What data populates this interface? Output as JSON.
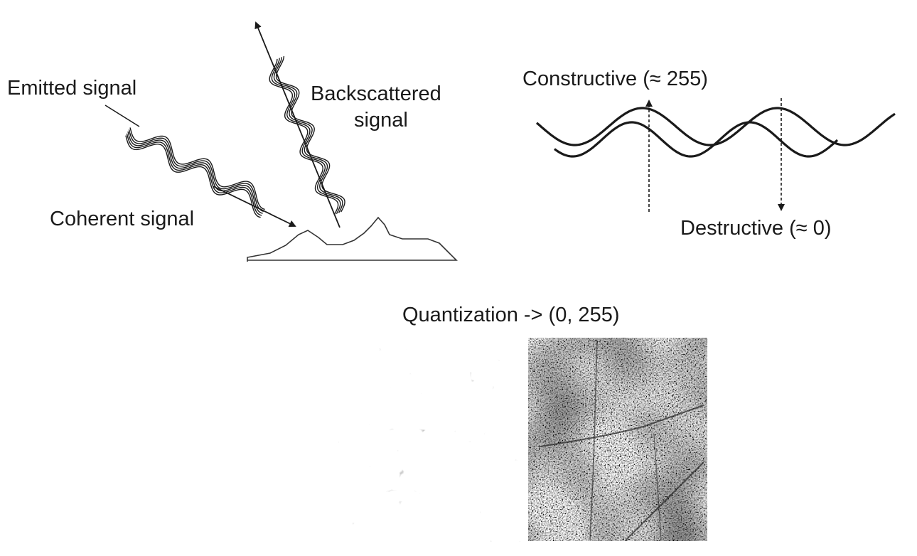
{
  "labels": {
    "emitted": "Emitted signal",
    "coherent": "Coherent signal",
    "backscattered_1": "Backscattered",
    "backscattered_2": "signal",
    "constructive": "Constructive (≈ 255)",
    "destructive": "Destructive (≈ 0)",
    "quantization": "Quantization -> (0, 255)"
  },
  "colors": {
    "ink": "#1a1a1a",
    "background": "#ffffff"
  },
  "panels": [
    "speckle-low-res",
    "speckle-high-res"
  ]
}
